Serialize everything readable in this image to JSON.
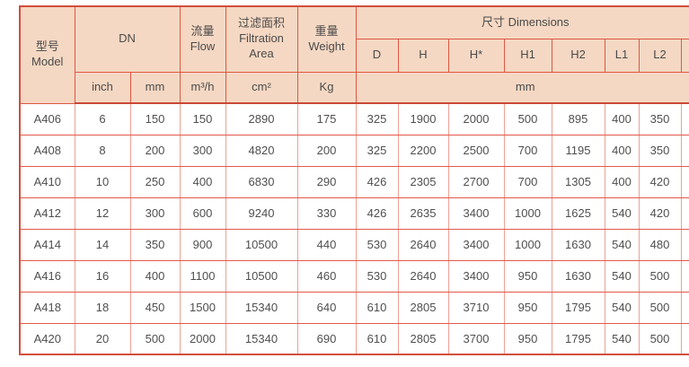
{
  "colors": {
    "header_bg": "#f5d8c3",
    "border_strong": "#dc5743",
    "border_light": "#efa094",
    "border_outer": "#d14e3c",
    "text": "#4f4f4f"
  },
  "header": {
    "model_zh": "型号",
    "model_en": "Model",
    "dn": "DN",
    "flow_zh": "流量",
    "flow_en": "Flow",
    "filtration_zh": "过滤面积",
    "filtration_en_1": "Filtration",
    "filtration_en_2": "Area",
    "weight_zh": "重量",
    "weight_en": "Weight",
    "dimensions": "尺寸 Dimensions",
    "dim_cols": [
      "D",
      "H",
      "H*",
      "H1",
      "H2",
      "L1",
      "L2"
    ],
    "units": {
      "inch": "inch",
      "mm": "mm",
      "flow": "m³/h",
      "area": "cm²",
      "weight": "Kg",
      "dim": "mm"
    }
  },
  "rows": [
    [
      "A406",
      "6",
      "150",
      "150",
      "2890",
      "175",
      "325",
      "1900",
      "2000",
      "500",
      "895",
      "400",
      "350"
    ],
    [
      "A408",
      "8",
      "200",
      "300",
      "4820",
      "200",
      "325",
      "2200",
      "2500",
      "700",
      "1195",
      "400",
      "350"
    ],
    [
      "A410",
      "10",
      "250",
      "400",
      "6830",
      "290",
      "426",
      "2305",
      "2700",
      "700",
      "1305",
      "400",
      "420"
    ],
    [
      "A412",
      "12",
      "300",
      "600",
      "9240",
      "330",
      "426",
      "2635",
      "3400",
      "1000",
      "1625",
      "540",
      "420"
    ],
    [
      "A414",
      "14",
      "350",
      "900",
      "10500",
      "440",
      "530",
      "2640",
      "3400",
      "1000",
      "1630",
      "540",
      "480"
    ],
    [
      "A416",
      "16",
      "400",
      "1100",
      "10500",
      "460",
      "530",
      "2640",
      "3400",
      "950",
      "1630",
      "540",
      "500"
    ],
    [
      "A418",
      "18",
      "450",
      "1500",
      "15340",
      "640",
      "610",
      "2805",
      "3710",
      "950",
      "1795",
      "540",
      "500"
    ],
    [
      "A420",
      "20",
      "500",
      "2000",
      "15340",
      "690",
      "610",
      "2805",
      "3700",
      "950",
      "1795",
      "540",
      "500"
    ]
  ]
}
